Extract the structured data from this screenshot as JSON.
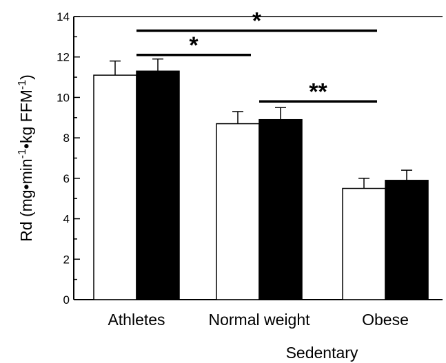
{
  "chart_data": {
    "type": "bar",
    "categories": [
      "Athletes",
      "Normal weight",
      "Obese"
    ],
    "group_label": "Sedentary",
    "series": [
      {
        "values": [
          11.1,
          8.7,
          5.5
        ],
        "errors": [
          0.7,
          0.6,
          0.5
        ],
        "color": "#ffffff"
      },
      {
        "values": [
          11.3,
          8.9,
          5.9
        ],
        "errors": [
          0.6,
          0.6,
          0.5
        ],
        "color": "#000000"
      }
    ],
    "ylabel_parts": [
      "Rd (mg•min",
      "-1",
      "•kg FFM",
      "-1",
      ")"
    ],
    "ylim": [
      0,
      14
    ],
    "yticks": [
      "0",
      "2",
      "4",
      "6",
      "8",
      "10",
      "12",
      "14"
    ],
    "grid": false,
    "significance": [
      {
        "label": "*",
        "from": "Athletes",
        "to": "Obese",
        "y": 13.3
      },
      {
        "label": "*",
        "from": "Athletes",
        "to": "Normal weight",
        "y": 12.1
      },
      {
        "label": "**",
        "from": "Normal weight",
        "to": "Obese",
        "y": 9.8
      }
    ]
  }
}
